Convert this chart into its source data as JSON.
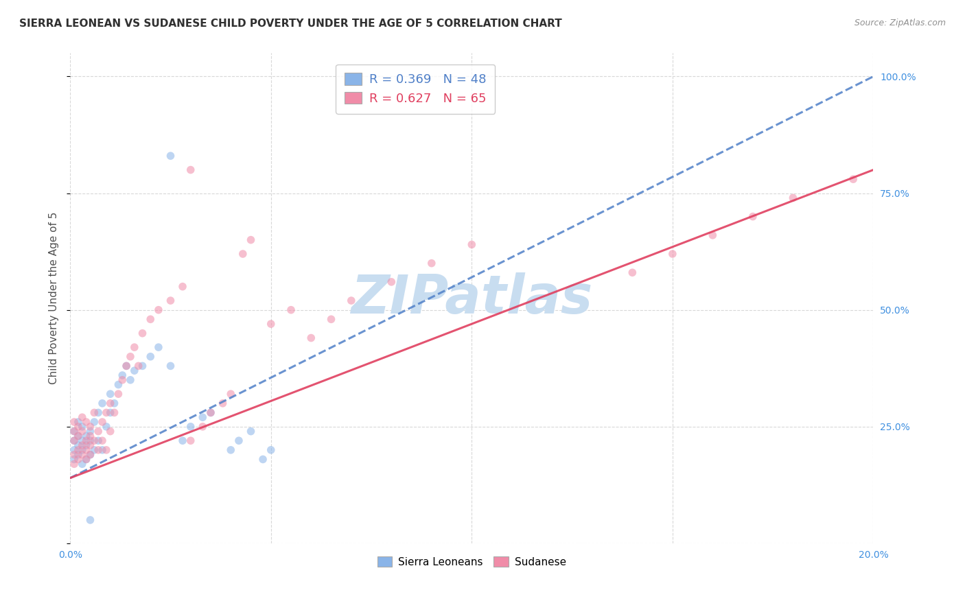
{
  "title": "SIERRA LEONEAN VS SUDANESE CHILD POVERTY UNDER THE AGE OF 5 CORRELATION CHART",
  "source": "Source: ZipAtlas.com",
  "ylabel": "Child Poverty Under the Age of 5",
  "xlim": [
    0.0,
    0.2
  ],
  "ylim": [
    0.0,
    1.05
  ],
  "yticks": [
    0.0,
    0.25,
    0.5,
    0.75,
    1.0
  ],
  "xticks": [
    0.0,
    0.05,
    0.1,
    0.15,
    0.2
  ],
  "xtick_labels": [
    "0.0%",
    "",
    "",
    "",
    "20.0%"
  ],
  "ytick_labels_right": [
    "",
    "25.0%",
    "50.0%",
    "75.0%",
    "100.0%"
  ],
  "sierra_R": 0.369,
  "sierra_N": 48,
  "sudanese_R": 0.627,
  "sudanese_N": 65,
  "sierra_color": "#8ab4e8",
  "sudanese_color": "#f08ca8",
  "sierra_line_color": "#5080c8",
  "sudanese_line_color": "#e04060",
  "sierra_line_style": "--",
  "sudanese_line_style": "-",
  "watermark": "ZIPatlas",
  "watermark_color": "#c8ddf0",
  "background_color": "#ffffff",
  "grid_color": "#d8d8d8",
  "title_color": "#303030",
  "axis_label_color": "#505050",
  "tick_color_blue": "#4090e0",
  "legend_border_color": "#c0c0c0",
  "marker_size": 70,
  "marker_alpha": 0.55,
  "line_width": 2.2,
  "sierra_line_x0": 0.0,
  "sierra_line_y0": 0.14,
  "sierra_line_x1": 0.2,
  "sierra_line_y1": 1.0,
  "sudanese_line_x0": 0.0,
  "sudanese_line_y0": 0.14,
  "sudanese_line_x1": 0.2,
  "sudanese_line_y1": 0.8,
  "sierra_pts_x": [
    0.001,
    0.001,
    0.001,
    0.001,
    0.002,
    0.002,
    0.002,
    0.002,
    0.003,
    0.003,
    0.003,
    0.003,
    0.004,
    0.004,
    0.004,
    0.005,
    0.005,
    0.005,
    0.006,
    0.006,
    0.007,
    0.007,
    0.008,
    0.008,
    0.009,
    0.01,
    0.01,
    0.011,
    0.012,
    0.013,
    0.014,
    0.015,
    0.016,
    0.018,
    0.02,
    0.022,
    0.025,
    0.025,
    0.028,
    0.03,
    0.033,
    0.035,
    0.04,
    0.042,
    0.045,
    0.048,
    0.05,
    0.005
  ],
  "sierra_pts_y": [
    0.2,
    0.22,
    0.18,
    0.24,
    0.19,
    0.23,
    0.21,
    0.26,
    0.2,
    0.17,
    0.22,
    0.25,
    0.18,
    0.21,
    0.23,
    0.19,
    0.22,
    0.24,
    0.2,
    0.26,
    0.22,
    0.28,
    0.2,
    0.3,
    0.25,
    0.28,
    0.32,
    0.3,
    0.34,
    0.36,
    0.38,
    0.35,
    0.37,
    0.38,
    0.4,
    0.42,
    0.38,
    0.83,
    0.22,
    0.25,
    0.27,
    0.28,
    0.2,
    0.22,
    0.24,
    0.18,
    0.2,
    0.05
  ],
  "sudanese_pts_x": [
    0.001,
    0.001,
    0.001,
    0.001,
    0.001,
    0.002,
    0.002,
    0.002,
    0.002,
    0.003,
    0.003,
    0.003,
    0.003,
    0.004,
    0.004,
    0.004,
    0.004,
    0.005,
    0.005,
    0.005,
    0.005,
    0.006,
    0.006,
    0.007,
    0.007,
    0.008,
    0.008,
    0.009,
    0.009,
    0.01,
    0.01,
    0.011,
    0.012,
    0.013,
    0.014,
    0.015,
    0.016,
    0.017,
    0.018,
    0.02,
    0.022,
    0.025,
    0.028,
    0.03,
    0.03,
    0.033,
    0.035,
    0.038,
    0.04,
    0.043,
    0.045,
    0.05,
    0.055,
    0.06,
    0.065,
    0.07,
    0.08,
    0.09,
    0.1,
    0.14,
    0.15,
    0.16,
    0.17,
    0.18,
    0.195
  ],
  "sudanese_pts_y": [
    0.22,
    0.19,
    0.24,
    0.17,
    0.26,
    0.2,
    0.23,
    0.18,
    0.25,
    0.21,
    0.19,
    0.24,
    0.27,
    0.2,
    0.22,
    0.18,
    0.26,
    0.21,
    0.23,
    0.19,
    0.25,
    0.22,
    0.28,
    0.2,
    0.24,
    0.22,
    0.26,
    0.2,
    0.28,
    0.24,
    0.3,
    0.28,
    0.32,
    0.35,
    0.38,
    0.4,
    0.42,
    0.38,
    0.45,
    0.48,
    0.5,
    0.52,
    0.55,
    0.8,
    0.22,
    0.25,
    0.28,
    0.3,
    0.32,
    0.62,
    0.65,
    0.47,
    0.5,
    0.44,
    0.48,
    0.52,
    0.56,
    0.6,
    0.64,
    0.58,
    0.62,
    0.66,
    0.7,
    0.74,
    0.78
  ]
}
